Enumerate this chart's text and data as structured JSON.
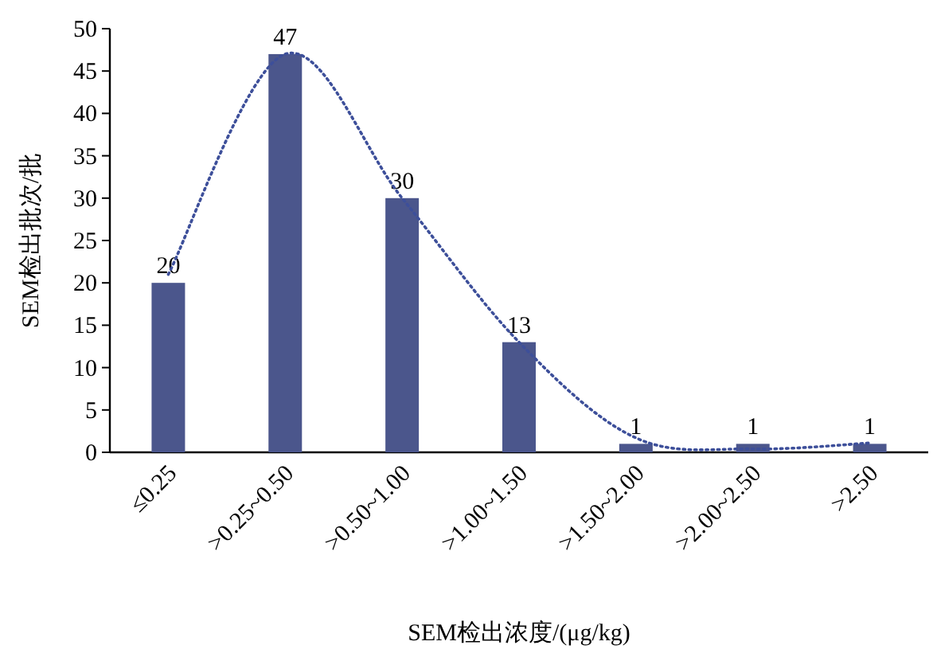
{
  "chart_data": {
    "type": "bar",
    "xlabel": "SEM检出浓度/(μg/kg)",
    "ylabel": "SEM检出批次/批",
    "categories": [
      "≤0.25",
      ">0.25~0.50",
      ">0.50~1.00",
      ">1.00~1.50",
      ">1.50~2.00",
      ">2.00~2.50",
      ">2.50"
    ],
    "ylim": [
      0,
      50
    ],
    "yticks": [
      0,
      5,
      10,
      15,
      20,
      25,
      30,
      35,
      40,
      45,
      50
    ],
    "series": [
      {
        "color": "#4b568c",
        "values": [
          20,
          47,
          30,
          13,
          1,
          1,
          1
        ],
        "value_labels": [
          "20",
          "47",
          "30",
          "13",
          "1",
          "1",
          "1"
        ]
      },
      {
        "type": "line",
        "color": "#3d4f9a",
        "line_style": "dotted",
        "x": [
          "≤0.25",
          ">0.25~0.50",
          ">0.50~1.00",
          ">1.00~1.50",
          ">1.50~2.00",
          ">2.00~2.50",
          ">2.50"
        ],
        "values": [
          21,
          47,
          30,
          13,
          1.7,
          0.4,
          1.1
        ]
      }
    ]
  }
}
